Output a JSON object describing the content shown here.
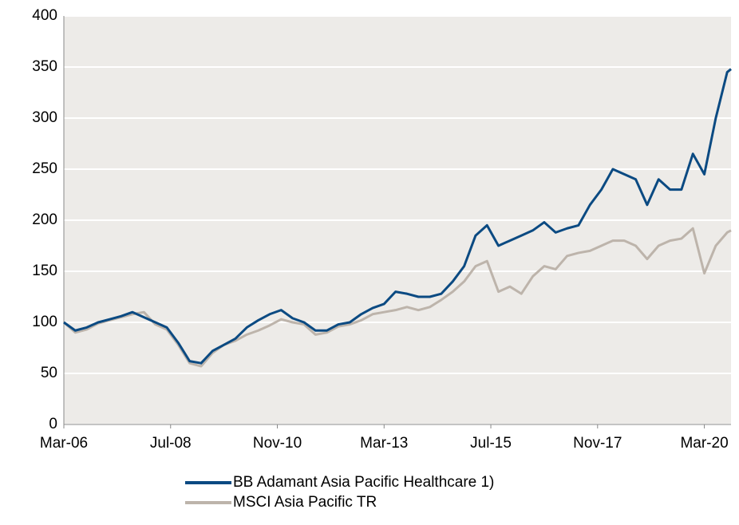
{
  "chart_data": {
    "type": "line",
    "x": [
      "2006-03",
      "2006-06",
      "2006-09",
      "2006-12",
      "2007-03",
      "2007-06",
      "2007-09",
      "2007-12",
      "2008-03",
      "2008-06",
      "2008-09",
      "2008-12",
      "2009-03",
      "2009-06",
      "2009-09",
      "2009-12",
      "2010-03",
      "2010-06",
      "2010-09",
      "2010-12",
      "2011-03",
      "2011-06",
      "2011-09",
      "2011-12",
      "2012-03",
      "2012-06",
      "2012-09",
      "2012-12",
      "2013-03",
      "2013-06",
      "2013-09",
      "2013-12",
      "2014-03",
      "2014-06",
      "2014-09",
      "2014-12",
      "2015-03",
      "2015-06",
      "2015-09",
      "2015-12",
      "2016-03",
      "2016-06",
      "2016-09",
      "2016-12",
      "2017-03",
      "2017-06",
      "2017-09",
      "2017-12",
      "2018-03",
      "2018-06",
      "2018-09",
      "2018-12",
      "2019-03",
      "2019-06",
      "2019-09",
      "2019-12",
      "2020-03",
      "2020-06",
      "2020-09",
      "2020-10"
    ],
    "series": [
      {
        "name": "BB Adamant Asia Pacific Healthcare 1)",
        "color": "#0b4a82",
        "values": [
          100,
          92,
          95,
          100,
          103,
          106,
          110,
          105,
          100,
          95,
          80,
          62,
          60,
          72,
          78,
          84,
          95,
          102,
          108,
          112,
          104,
          100,
          92,
          92,
          98,
          100,
          108,
          114,
          118,
          130,
          128,
          125,
          125,
          128,
          140,
          155,
          185,
          195,
          175,
          180,
          185,
          190,
          198,
          188,
          192,
          195,
          215,
          230,
          250,
          245,
          240,
          215,
          240,
          230,
          230,
          265,
          245,
          300,
          345,
          348
        ]
      },
      {
        "name": "MSCI Asia Pacific TR",
        "color": "#bdb4ab",
        "values": [
          100,
          90,
          93,
          99,
          102,
          105,
          108,
          110,
          98,
          93,
          78,
          60,
          57,
          70,
          78,
          82,
          88,
          92,
          97,
          103,
          100,
          98,
          88,
          90,
          96,
          98,
          102,
          108,
          110,
          112,
          115,
          112,
          115,
          122,
          130,
          140,
          155,
          160,
          130,
          135,
          128,
          145,
          155,
          152,
          165,
          168,
          170,
          175,
          180,
          180,
          175,
          162,
          175,
          180,
          182,
          192,
          148,
          175,
          188,
          190
        ]
      }
    ],
    "xlim": [
      "2006-03",
      "2020-10"
    ],
    "xticks": [
      {
        "value": "2006-03",
        "label": "Mar-06"
      },
      {
        "value": "2008-07",
        "label": "Jul-08"
      },
      {
        "value": "2010-11",
        "label": "Nov-10"
      },
      {
        "value": "2013-03",
        "label": "Mar-13"
      },
      {
        "value": "2015-07",
        "label": "Jul-15"
      },
      {
        "value": "2017-11",
        "label": "Nov-17"
      },
      {
        "value": "2020-03",
        "label": "Mar-20"
      }
    ],
    "ylim": [
      0,
      400
    ],
    "yticks": [
      0,
      50,
      100,
      150,
      200,
      250,
      300,
      350,
      400
    ],
    "grid": true,
    "legend": "bottom"
  }
}
